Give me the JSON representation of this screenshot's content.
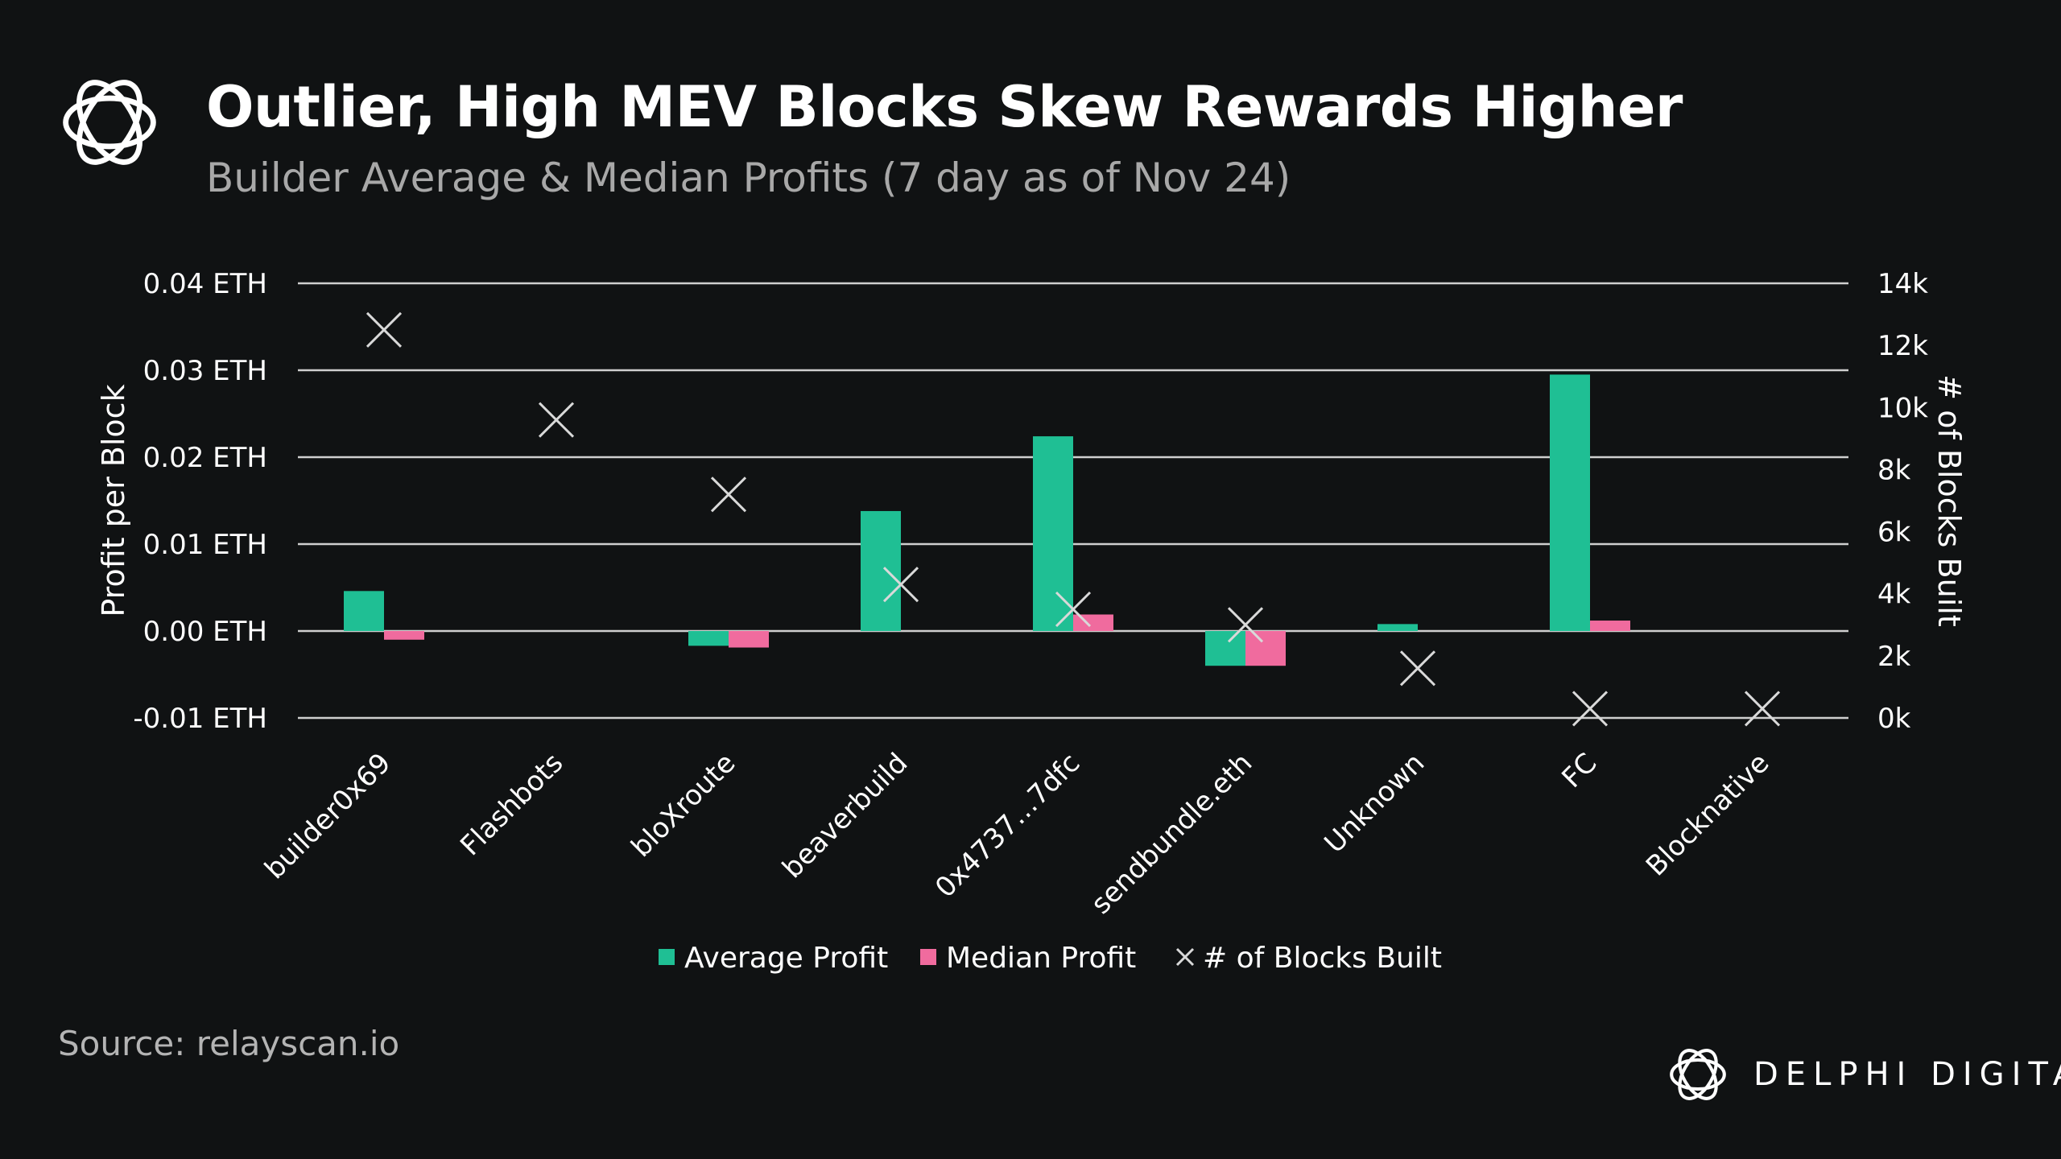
{
  "header": {
    "title": "Outlier, High MEV Blocks Skew Rewards Higher",
    "subtitle": "Builder Average & Median Profits (7 day as of Nov 24)"
  },
  "footer": {
    "source": "Source: relayscan.io",
    "brand": "DELPHI DIGITAL"
  },
  "icons": {
    "logo": "delphi-logo-icon"
  },
  "chart_data": {
    "type": "bar",
    "title": "",
    "categories": [
      "builder0x69",
      "Flashbots",
      "bloXroute",
      "beaverbuild",
      "0x4737…7dfc",
      "sendbundle.eth",
      "Unknown",
      "FC",
      "Blocknative"
    ],
    "series": [
      {
        "name": "Average Profit",
        "type": "bar",
        "axis": "left",
        "color": "#1fbf94",
        "values": [
          0.0046,
          0.0,
          -0.0017,
          0.0138,
          0.0224,
          -0.004,
          0.0008,
          0.0295,
          0.0
        ]
      },
      {
        "name": "Median Profit",
        "type": "bar",
        "axis": "left",
        "color": "#f06b9e",
        "values": [
          -0.001,
          0.0,
          -0.0019,
          0.0,
          0.0019,
          -0.004,
          0.0,
          0.0012,
          0.0
        ]
      },
      {
        "name": "# of Blocks Built",
        "type": "scatter",
        "marker": "x",
        "axis": "right",
        "color": "#d9d9d9",
        "values": [
          12500,
          9600,
          7200,
          4300,
          3500,
          3000,
          1600,
          300,
          300
        ]
      }
    ],
    "yleft": {
      "label": "Profit per Block",
      "ylim": [
        -0.01,
        0.04
      ],
      "ticks": [
        0.04,
        0.03,
        0.02,
        0.01,
        0.0,
        -0.01
      ],
      "tick_labels": [
        "0.04 ETH",
        "0.03 ETH",
        "0.02 ETH",
        "0.01 ETH",
        "0.00 ETH",
        "-0.01 ETH"
      ]
    },
    "yright": {
      "label": "# of Blocks Built",
      "ylim": [
        0,
        14000
      ],
      "ticks": [
        14000,
        12000,
        10000,
        8000,
        6000,
        4000,
        2000,
        0
      ],
      "tick_labels": [
        "14k",
        "12k",
        "10k",
        "8k",
        "6k",
        "4k",
        "2k",
        "0k"
      ]
    },
    "grid": "horizontal",
    "legend": "bottom-center",
    "colors": {
      "background": "#101213",
      "grid": "#cfcfcf",
      "text": "#ffffff"
    }
  }
}
